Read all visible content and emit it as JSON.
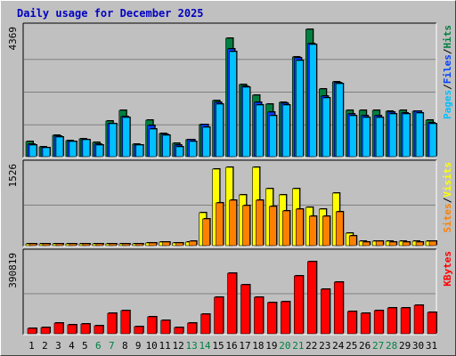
{
  "title": "Daily usage for December 2025",
  "chart_data": {
    "type": "bar",
    "title": "Daily usage for December 2025",
    "days": [
      "1",
      "2",
      "3",
      "4",
      "5",
      "6",
      "7",
      "8",
      "9",
      "10",
      "11",
      "12",
      "13",
      "14",
      "15",
      "16",
      "17",
      "18",
      "19",
      "20",
      "21",
      "22",
      "23",
      "24",
      "25",
      "26",
      "27",
      "28",
      "29",
      "30",
      "31"
    ],
    "weekend_days": [
      "6",
      "7",
      "13",
      "14",
      "20",
      "21",
      "27",
      "28"
    ],
    "colors": {
      "hits": "#008040",
      "files": "#0040ff",
      "pages": "#00c0ff",
      "visits": "#ffff00",
      "sites": "#ff8000",
      "kbytes": "#ff0000",
      "weekend": "#008040",
      "normal": "#000000"
    },
    "panels": [
      {
        "name": "hits-files-pages",
        "max_label": "4369",
        "ymax": 4369,
        "legend": [
          {
            "text": "Pages",
            "color": "#00c0ff"
          },
          {
            "text": "/",
            "color": "#000000"
          },
          {
            "text": "Files",
            "color": "#0040ff"
          },
          {
            "text": "/",
            "color": "#000000"
          },
          {
            "text": "Hits",
            "color": "#008040"
          }
        ],
        "series": [
          {
            "name": "Hits",
            "color": "#008040",
            "values": [
              520,
              330,
              710,
              540,
              600,
              480,
              1220,
              1580,
              420,
              1230,
              780,
              450,
              580,
              1080,
              1900,
              4020,
              2440,
              2080,
              1790,
              1840,
              3380,
              4320,
              2280,
              2530,
              1560,
              1560,
              1580,
              1540,
              1570,
              1540,
              1250
            ]
          },
          {
            "name": "Files",
            "color": "#0040ff",
            "values": [
              420,
              300,
              680,
              520,
              580,
              420,
              1120,
              1370,
              400,
              1040,
              760,
              380,
              560,
              1080,
              1830,
              3650,
              2390,
              1830,
              1510,
              1800,
              3340,
              3830,
              2040,
              2500,
              1440,
              1400,
              1390,
              1500,
              1490,
              1540,
              1160
            ]
          },
          {
            "name": "Pages",
            "color": "#00c0ff",
            "values": [
              390,
              290,
              660,
              500,
              560,
              380,
              1100,
              1320,
              380,
              930,
              730,
              330,
              510,
              1000,
              1790,
              3560,
              2340,
              1760,
              1400,
              1740,
              3240,
              3790,
              1990,
              2470,
              1400,
              1330,
              1320,
              1450,
              1440,
              1470,
              1120
            ]
          }
        ]
      },
      {
        "name": "visits-sites",
        "max_label": "1526",
        "ymax": 1526,
        "legend": [
          {
            "text": "Sites",
            "color": "#ff8000"
          },
          {
            "text": "/",
            "color": "#000000"
          },
          {
            "text": "Visits",
            "color": "#ffff00"
          }
        ],
        "series": [
          {
            "name": "Visits",
            "color": "#ffff00",
            "values": [
              40,
              40,
              40,
              40,
              40,
              40,
              40,
              40,
              40,
              50,
              70,
              50,
              60,
              620,
              1440,
              1480,
              950,
              1480,
              1070,
              950,
              1070,
              720,
              690,
              990,
              240,
              90,
              90,
              90,
              90,
              90,
              90
            ]
          },
          {
            "name": "Sites",
            "color": "#ff8000",
            "values": [
              30,
              40,
              30,
              30,
              30,
              30,
              30,
              30,
              40,
              50,
              70,
              50,
              80,
              500,
              800,
              850,
              760,
              850,
              730,
              660,
              690,
              560,
              560,
              640,
              180,
              60,
              80,
              70,
              60,
              70,
              90
            ]
          }
        ]
      },
      {
        "name": "kbytes",
        "max_label": "390819",
        "ymax": 390819,
        "legend": [
          {
            "text": "KBytes",
            "color": "#ff0000"
          }
        ],
        "series": [
          {
            "name": "KBytes",
            "color": "#ff0000",
            "values": [
              28000,
              30000,
              53000,
              44000,
              48000,
              38000,
              101000,
              115000,
              33000,
              82000,
              67000,
              32000,
              50000,
              96000,
              179000,
              295000,
              237000,
              180000,
              150000,
              155000,
              283000,
              353000,
              219000,
              253000,
              110000,
              101000,
              111000,
              124000,
              127000,
              137000,
              105000
            ]
          }
        ]
      }
    ]
  }
}
